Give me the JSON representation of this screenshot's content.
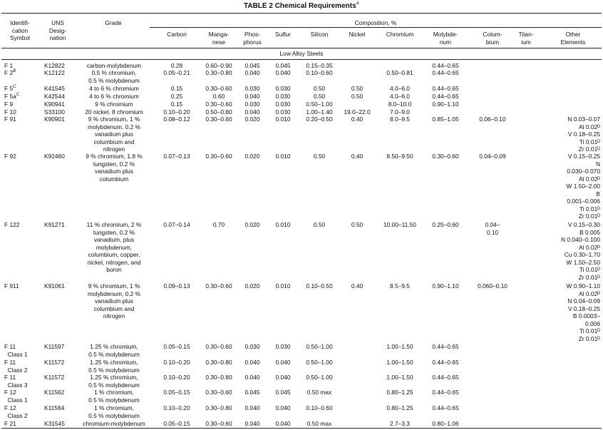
{
  "table": {
    "title": "TABLE 2  Chemical Requirements",
    "title_note": "A",
    "headers": {
      "id": "Identifi-\ncation\nSymbol",
      "uns": "UNS\nDesig-\nnation",
      "grade": "Grade",
      "composition": "Composition, %",
      "carbon": "Carbon",
      "manganese": "Manga-\nnese",
      "phosphorus": "Phos-\nphorus",
      "sulfur": "Sulfur",
      "silicon": "Silicon",
      "nickel": "Nickel",
      "chromium": "Chromium",
      "molybdenum": "Molybde-\nnum",
      "columbium": "Colum-\nbium",
      "titanium": "Titan-\nium",
      "other": "Other\nElements"
    },
    "section": "Low Alloy Steels",
    "rows": [
      {
        "id": "F 1",
        "uns": "K12822",
        "grade": "carbon-molybdenum",
        "c": "0.28",
        "mn": "0.60–0.90",
        "p": "0.045",
        "s": "0.045",
        "si": "0.15–0.35",
        "ni": "",
        "cr": "",
        "mo": "0.44–0.65",
        "cb": "",
        "ti": "",
        "other": ""
      },
      {
        "id": "F 2",
        "id_note": "B",
        "uns": "K12122",
        "grade": "0.5 % chromium,\n0.5 % molybdenum",
        "c": "0.05–0.21",
        "mn": "0.30–0.80",
        "p": "0.040",
        "s": "0.040",
        "si": "0.10–0.60",
        "ni": "",
        "cr": "0.50–0.81",
        "mo": "0.44–0.65",
        "cb": "",
        "ti": "",
        "other": ""
      },
      {
        "id": "F 5",
        "id_note": "C",
        "uns": "K41545",
        "grade": "4 to 6 % chromium",
        "c": "0.15",
        "mn": "0.30–0.60",
        "p": "0.030",
        "s": "0.030",
        "si": "0.50",
        "ni": "0.50",
        "cr": "4.0–6.0",
        "mo": "0.44–0.65",
        "cb": "",
        "ti": "",
        "other": ""
      },
      {
        "id": "F 5a",
        "id_note": "C",
        "uns": "K42544",
        "grade": "4 to 6 % chromium",
        "c": "0.25",
        "mn": "0.60",
        "p": "0.040",
        "s": "0.030",
        "si": "0.50",
        "ni": "0.50",
        "cr": "4.0–6.0",
        "mo": "0.44–0.65",
        "cb": "",
        "ti": "",
        "other": ""
      },
      {
        "id": "F 9",
        "uns": "K90941",
        "grade": "9 % chromium",
        "c": "0.15",
        "mn": "0.30–0.60",
        "p": "0.030",
        "s": "0.030",
        "si": "0.50–1.00",
        "ni": "",
        "cr": "8.0–10.0",
        "mo": "0.90–1.10",
        "cb": "",
        "ti": "",
        "other": ""
      },
      {
        "id": "F 10",
        "uns": "S33100",
        "grade": "20 nickel, 8 chromium",
        "c": "0.10–0.20",
        "mn": "0.50–0.80",
        "p": "0.040",
        "s": "0.030",
        "si": "1.00–1.40",
        "ni": "19.0–22.0",
        "cr": "7.0–9.0",
        "mo": "",
        "cb": "",
        "ti": "",
        "other": ""
      },
      {
        "id": "F 91",
        "uns": "K90901",
        "grade": "9 % chromium, 1 %\nmolybdenum, 0.2 %\nvanadium plus\ncolumbium and\nnitrogen",
        "c": "0.08–0.12",
        "mn": "0.30–0.60",
        "p": "0.020",
        "s": "0.010",
        "si": "0.20–0.50",
        "ni": "0.40",
        "cr": "8.0–9.5",
        "mo": "0.85–1.05",
        "cb": "0.06–0.10",
        "ti": "",
        "other": "N 0.03–0.07\nAl 0.02ᴰ\nV 0.18–0.25\nTi 0.01ᴰ\nZr 0.01ᴰ"
      },
      {
        "id": "F 92",
        "uns": "K92460",
        "grade": "9 % chromium, 1.8 %\ntungsten, 0.2 %\nvanadium plus\ncolumbium",
        "c": "0.07–0.13",
        "mn": "0.30–0.60",
        "p": "0.020",
        "s": "0.010",
        "si": "0.50",
        "ni": "0.40",
        "cr": "8.50–9.50",
        "mo": "0.30–0.60",
        "cb": "0.04–0.09",
        "ti": "",
        "other": "V 0.15–0.25\nN\n0.030–0.070\nAl 0.02ᴰ\nW 1.50–2.00\nB\n0.001–0.006\nTi 0.01ᴰ\nZr 0.01ᴰ"
      },
      {
        "id": "F 122",
        "uns": "K91271",
        "grade": "11 % chromium, 2 %\ntungsten, 0.2 %\nvanadium, plus\nmolybdenum,\ncolumbium, copper,\nnickel, nitrogen, and\nboron",
        "c": "0.07–0.14",
        "mn": "0.70",
        "p": "0.020",
        "s": "0.010",
        "si": "0.50",
        "ni": "0.50",
        "cr": "10.00–11.50",
        "mo": "0.25–0.60",
        "cb": "0.04–\n0.10",
        "ti": "",
        "other": "V 0.15–0.30\nB 0.005\nN 0.040–0.100\nAl 0.02ᴰ\nCu 0.30–1.70\nW 1.50–2.50\nTi 0.01ᴰ\nZr 0.01ᴰ"
      },
      {
        "id": "F 911",
        "uns": "K91061",
        "grade": "9 % chromium, 1 %\nmolybdenum, 0.2 %\nvanadium plus\ncolumbium and\nnitrogen",
        "c": "0.09–0.13",
        "mn": "0.30–0.60",
        "p": "0.020",
        "s": "0.010",
        "si": "0.10–0.50",
        "ni": "0.40",
        "cr": "8.5–9.5",
        "mo": "0.90–1.10",
        "cb": "0.060–0.10",
        "ti": "",
        "other": "W 0.90–1.10\nAl 0.02ᴰ\nN 0.04–0.09\nV 0.18–0.25\nB 0.0003–\n0.006\nTi 0.01ᴰ\nZr 0.01ᴰ"
      },
      {
        "id": "F 11\n  Class 1",
        "uns": "K11597",
        "grade": "1.25 % chromium,\n0.5 % molybdenum",
        "c": "0.05–0.15",
        "mn": "0.30–0.60",
        "p": "0.030",
        "s": "0.030",
        "si": "0.50–1.00",
        "ni": "",
        "cr": "1.00–1.50",
        "mo": "0.44–0.65",
        "cb": "",
        "ti": "",
        "other": ""
      },
      {
        "id": "F 11\n  Class 2",
        "uns": "K11572",
        "grade": "1.25 % chromium,\n0.5 % molybdenum",
        "c": "0.10–0.20",
        "mn": "0.30–0.80",
        "p": "0.040",
        "s": "0.040",
        "si": "0.50–1.00",
        "ni": "",
        "cr": "1.00–1.50",
        "mo": "0.44–0.65",
        "cb": "",
        "ti": "",
        "other": ""
      },
      {
        "id": "F 11\n  Class 3",
        "uns": "K11572",
        "grade": "1.25 % chromium,\n0.5 % molybdenum",
        "c": "0.10–0.20",
        "mn": "0.30–0.80",
        "p": "0.040",
        "s": "0.040",
        "si": "0.50–1.00",
        "ni": "",
        "cr": "1.00–1.50",
        "mo": "0.44–0.65",
        "cb": "",
        "ti": "",
        "other": ""
      },
      {
        "id": "F 12\n  Class 1",
        "uns": "K11562",
        "grade": "1 % chromium,\n0.5 % molybdenum",
        "c": "0.05–0.15",
        "mn": "0.30–0.60",
        "p": "0.045",
        "s": "0.045",
        "si": "0.50 max",
        "ni": "",
        "cr": "0.80–1.25",
        "mo": "0.44–0.65",
        "cb": "",
        "ti": "",
        "other": ""
      },
      {
        "id": "F 12\n  Class 2",
        "uns": "K11564",
        "grade": "1 % chromium,\n0.5 % molybdenum",
        "c": "0.10–0.20",
        "mn": "0.30–0.80",
        "p": "0.040",
        "s": "0.040",
        "si": "0.10–0.60",
        "ni": "",
        "cr": "0.80–1.25",
        "mo": "0.44–0.65",
        "cb": "",
        "ti": "",
        "other": ""
      },
      {
        "id": "F 21",
        "uns": "K31545",
        "grade": "chromium-molybdenum",
        "c": "0.05–0.15",
        "mn": "0.30–0.60",
        "p": "0.040",
        "s": "0.040",
        "si": "0.50 max",
        "ni": "",
        "cr": "2.7–3.3",
        "mo": "0.80–1.06",
        "cb": "",
        "ti": "",
        "other": ""
      }
    ]
  }
}
